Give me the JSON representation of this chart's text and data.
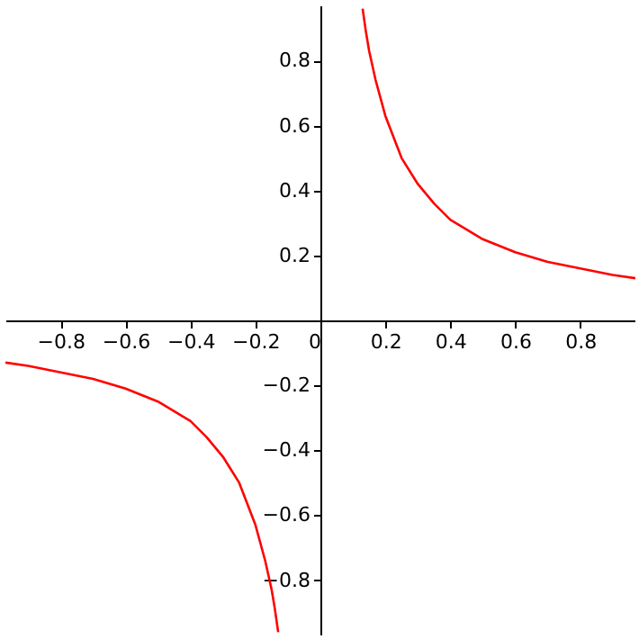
{
  "chart_data": {
    "type": "line",
    "xlim": [
      -0.97,
      0.97
    ],
    "ylim": [
      -0.97,
      0.97
    ],
    "xticks": [
      {
        "value": -0.8,
        "label": "−0.8"
      },
      {
        "value": -0.6,
        "label": "−0.6"
      },
      {
        "value": -0.4,
        "label": "−0.4"
      },
      {
        "value": -0.2,
        "label": "−0.2"
      },
      0,
      0.2,
      0.4,
      0.6,
      0.8
    ],
    "yticks": [
      {
        "value": -0.8,
        "label": "−0.8"
      },
      {
        "value": -0.6,
        "label": "−0.6"
      },
      {
        "value": -0.4,
        "label": "−0.4"
      },
      {
        "value": -0.2,
        "label": "−0.2"
      },
      0.2,
      0.4,
      0.6,
      0.8
    ],
    "series": [
      {
        "color": "#ff0000",
        "x": [
          0.13,
          0.14,
          0.15,
          0.17,
          0.2,
          0.25,
          0.3,
          0.35,
          0.4,
          0.5,
          0.6,
          0.7,
          0.8,
          0.9,
          0.97
        ],
        "values": [
          0.96,
          0.89,
          0.83,
          0.74,
          0.63,
          0.5,
          0.42,
          0.36,
          0.31,
          0.25,
          0.21,
          0.18,
          0.16,
          0.14,
          0.13
        ]
      },
      {
        "color": "#ff0000",
        "x": [
          -0.97,
          -0.9,
          -0.8,
          -0.7,
          -0.6,
          -0.5,
          -0.4,
          -0.35,
          -0.3,
          -0.25,
          -0.2,
          -0.17,
          -0.15,
          -0.14,
          -0.13
        ],
        "values": [
          -0.13,
          -0.14,
          -0.16,
          -0.18,
          -0.21,
          -0.25,
          -0.31,
          -0.36,
          -0.42,
          -0.5,
          -0.63,
          -0.74,
          -0.83,
          -0.89,
          -0.96
        ]
      }
    ]
  }
}
